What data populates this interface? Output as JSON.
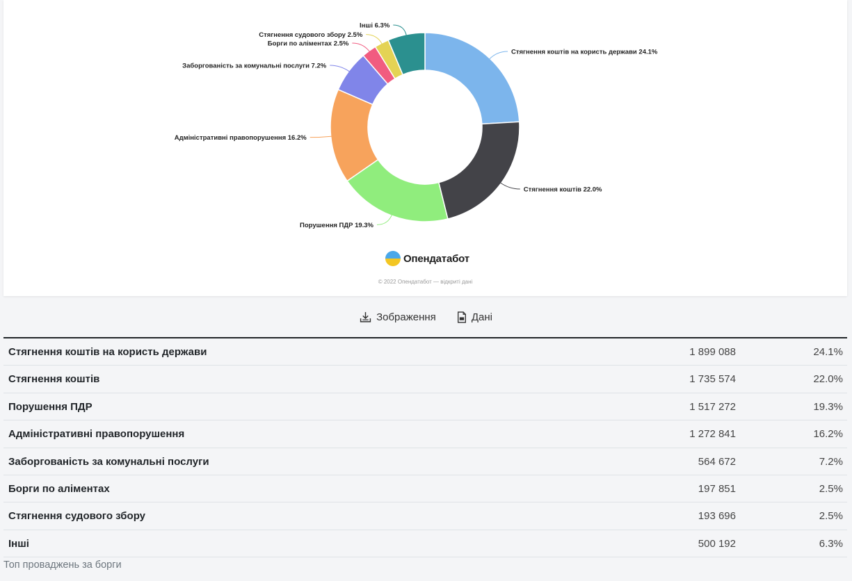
{
  "chart_data": {
    "type": "pie",
    "donut": true,
    "slices": [
      {
        "label": "Стягнення коштів на користь держави 24.1%",
        "name": "Стягнення коштів на користь держави",
        "value": 1899088,
        "percent": 24.1,
        "color": "#7cb5ec"
      },
      {
        "label": "Стягнення коштів 22.0%",
        "name": "Стягнення коштів",
        "value": 1735574,
        "percent": 22.0,
        "color": "#434348"
      },
      {
        "label": "Порушення ПДР 19.3%",
        "name": "Порушення ПДР",
        "value": 1517272,
        "percent": 19.3,
        "color": "#90ed7d"
      },
      {
        "label": "Адміністративні правопорушення 16.2%",
        "name": "Адміністративні правопорушення",
        "value": 1272841,
        "percent": 16.2,
        "color": "#f7a35c"
      },
      {
        "label": "Заборгованість за комунальні послуги 7.2%",
        "name": "Заборгованість за комунальні послуги",
        "value": 564672,
        "percent": 7.2,
        "color": "#8085e9"
      },
      {
        "label": "Борги по аліментах 2.5%",
        "name": "Борги по аліментах",
        "value": 197851,
        "percent": 2.5,
        "color": "#f15c80"
      },
      {
        "label": "Стягнення судового збору 2.5%",
        "name": "Стягнення судового збору",
        "value": 193696,
        "percent": 2.5,
        "color": "#e4d354"
      },
      {
        "label": "Інші 6.3%",
        "name": "Інші",
        "value": 500192,
        "percent": 6.3,
        "color": "#2b908f"
      }
    ]
  },
  "brand": {
    "name": "Опендатабот",
    "icon": "opendatabot-logo-icon"
  },
  "credits": "© 2022 Опендатабот — відкриті дані",
  "actions": {
    "image_label": "Зображення",
    "data_label": "Дані"
  },
  "table": {
    "rows": [
      {
        "name": "Стягнення коштів на користь держави",
        "count": "1 899 088",
        "pct": "24.1%"
      },
      {
        "name": "Стягнення коштів",
        "count": "1 735 574",
        "pct": "22.0%"
      },
      {
        "name": "Порушення ПДР",
        "count": "1 517 272",
        "pct": "19.3%"
      },
      {
        "name": "Адміністративні правопорушення",
        "count": "1 272 841",
        "pct": "16.2%"
      },
      {
        "name": "Заборгованість за комунальні послуги",
        "count": "564 672",
        "pct": "7.2%"
      },
      {
        "name": "Борги по аліментах",
        "count": "197 851",
        "pct": "2.5%"
      },
      {
        "name": "Стягнення судового збору",
        "count": "193 696",
        "pct": "2.5%"
      },
      {
        "name": "Інші",
        "count": "500 192",
        "pct": "6.3%"
      }
    ]
  },
  "caption": "Топ проваджень за борги"
}
